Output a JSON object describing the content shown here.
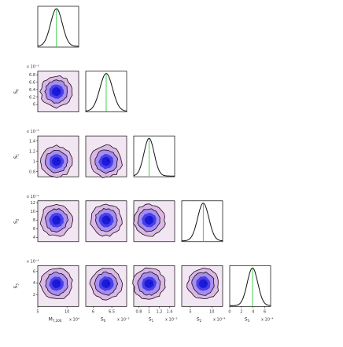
{
  "chart_data": {
    "type": "corner",
    "parameters": [
      {
        "symbol": "M",
        "sub": "7,200",
        "exp_label": "x 10⁴",
        "range": [
          5,
          12
        ],
        "ticks": [
          5,
          10
        ],
        "truth": 8.2,
        "sigma": 1.0
      },
      {
        "symbol": "S",
        "sub": "0",
        "exp_label": "x 10⁻³",
        "range": [
          5.8,
          6.9
        ],
        "ticks": [
          6,
          6.5
        ],
        "truth": 6.35,
        "sigma": 0.17,
        "left_ticks": [
          6,
          6.2,
          6.4,
          6.6,
          6.8
        ],
        "left_exp": "x 10⁻³"
      },
      {
        "symbol": "S",
        "sub": "1",
        "exp_label": "x 10⁻³",
        "range": [
          0.7,
          1.5
        ],
        "ticks": [
          0.8,
          1,
          1.2,
          1.4
        ],
        "truth": 1.0,
        "sigma": 0.1,
        "left_ticks": [
          0.8,
          1,
          1.2,
          1.4
        ],
        "left_exp": "x 10⁻³"
      },
      {
        "symbol": "S",
        "sub": "2",
        "exp_label": "x 10⁻⁴",
        "range": [
          3,
          12.5
        ],
        "ticks": [
          5,
          10
        ],
        "truth": 8.0,
        "sigma": 1.3,
        "left_ticks": [
          4,
          6,
          8,
          10,
          12
        ],
        "left_exp": "x 10⁻⁴"
      },
      {
        "symbol": "S",
        "sub": "3",
        "exp_label": "x 10⁻⁴",
        "range": [
          0,
          7
        ],
        "ticks": [
          0,
          2,
          4,
          6
        ],
        "truth": 3.9,
        "sigma": 0.9,
        "left_ticks": [
          2,
          4,
          6
        ],
        "left_exp": "x 10⁻⁴"
      }
    ],
    "colors": {
      "fill_outer": "#f3e6f3",
      "fill_1": "#dcb7e6",
      "fill_2": "#a58ef0",
      "fill_3": "#4a3fe6",
      "fill_core": "#1a1ad8",
      "contour": "#111111",
      "truth_line": "#2ecc40",
      "frame": "#222222"
    }
  }
}
